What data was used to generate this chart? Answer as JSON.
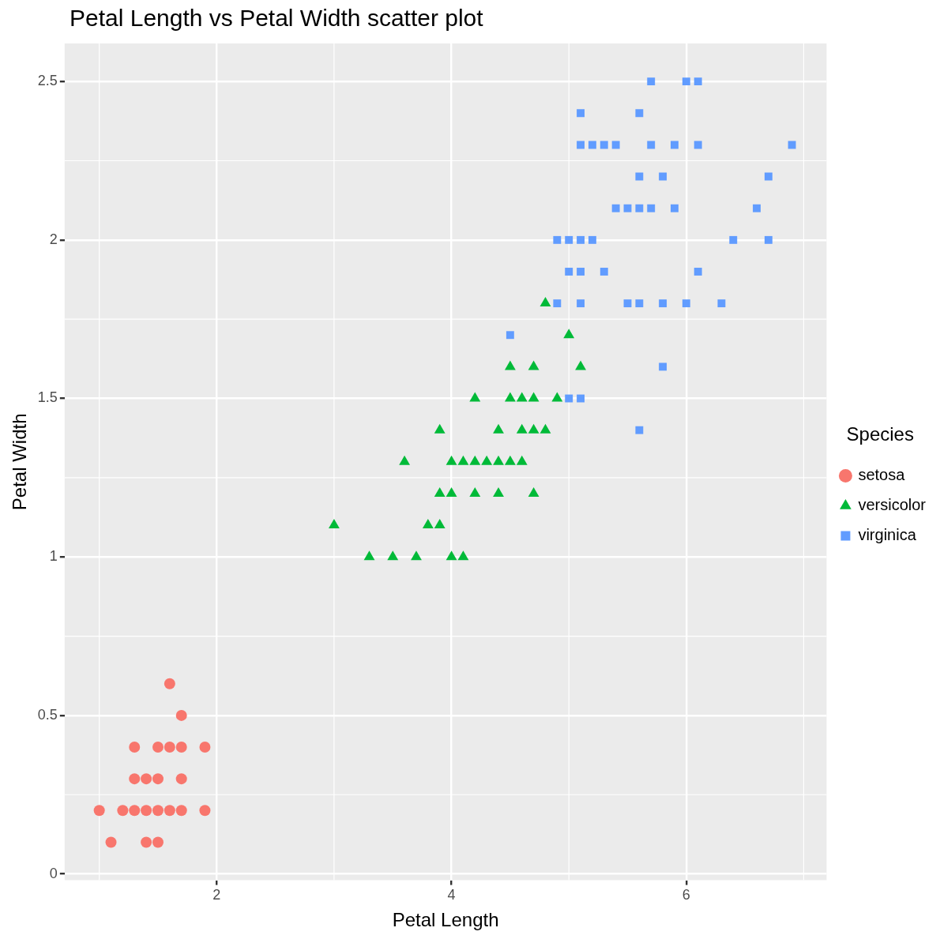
{
  "chart_data": {
    "type": "scatter",
    "title": "Petal Length vs Petal Width scatter plot",
    "xlabel": "Petal Length",
    "ylabel": "Petal Width",
    "legend_title": "Species",
    "legend": "right",
    "grid": true,
    "xlim": [
      0.705,
      7.195
    ],
    "xticks": [
      2,
      4,
      6
    ],
    "ylim": [
      -0.02,
      2.62
    ],
    "yticks": [
      0.0,
      0.5,
      1.0,
      1.5,
      2.0,
      {
        "value": 2.5,
        "label": "2.5"
      }
    ],
    "series": [
      {
        "name": "setosa",
        "color": "#f8766d",
        "marker": "circle",
        "x": [
          1.0,
          1.2,
          1.3,
          1.4,
          1.5,
          1.6,
          1.7,
          1.9,
          1.1,
          1.4,
          1.5,
          1.3,
          1.4,
          1.5,
          1.7,
          1.3,
          1.5,
          1.6,
          1.7,
          1.9,
          1.7,
          1.6
        ],
        "values": [
          0.2,
          0.2,
          0.2,
          0.2,
          0.2,
          0.2,
          0.2,
          0.2,
          0.1,
          0.1,
          0.1,
          0.3,
          0.3,
          0.3,
          0.3,
          0.4,
          0.4,
          0.4,
          0.4,
          0.4,
          0.5,
          0.6
        ]
      },
      {
        "name": "versicolor",
        "color": "#00ba38",
        "marker": "triangle",
        "x": [
          3.3,
          3.5,
          3.7,
          4.0,
          4.1,
          3.0,
          3.8,
          3.9,
          3.9,
          4.0,
          4.2,
          4.4,
          4.7,
          3.6,
          4.0,
          4.1,
          4.2,
          4.3,
          4.4,
          4.5,
          4.6,
          3.9,
          4.4,
          4.6,
          4.7,
          4.8,
          4.2,
          4.5,
          4.6,
          4.7,
          4.9,
          4.5,
          4.7,
          5.1,
          5.0,
          4.8
        ],
        "values": [
          1.0,
          1.0,
          1.0,
          1.0,
          1.0,
          1.1,
          1.1,
          1.1,
          1.2,
          1.2,
          1.2,
          1.2,
          1.2,
          1.3,
          1.3,
          1.3,
          1.3,
          1.3,
          1.3,
          1.3,
          1.3,
          1.4,
          1.4,
          1.4,
          1.4,
          1.4,
          1.5,
          1.5,
          1.5,
          1.5,
          1.5,
          1.6,
          1.6,
          1.6,
          1.7,
          1.8
        ]
      },
      {
        "name": "virginica",
        "color": "#619cff",
        "marker": "square",
        "x": [
          5.6,
          5.0,
          5.1,
          5.8,
          4.5,
          4.8,
          4.9,
          5.1,
          5.5,
          5.6,
          5.8,
          6.0,
          6.3,
          5.0,
          5.1,
          5.3,
          6.1,
          4.9,
          5.0,
          5.1,
          5.2,
          6.4,
          6.7,
          5.4,
          5.5,
          5.6,
          5.7,
          5.9,
          6.6,
          5.6,
          5.8,
          6.7,
          5.1,
          5.2,
          5.3,
          5.4,
          5.7,
          5.9,
          6.1,
          6.9,
          5.1,
          5.6,
          5.7,
          6.0,
          6.1
        ],
        "values": [
          1.4,
          1.5,
          1.5,
          1.6,
          1.7,
          null,
          1.8,
          1.8,
          1.8,
          1.8,
          1.8,
          1.8,
          1.8,
          1.9,
          1.9,
          1.9,
          1.9,
          2.0,
          2.0,
          2.0,
          2.0,
          2.0,
          2.0,
          2.1,
          2.1,
          2.1,
          2.1,
          2.1,
          2.1,
          2.2,
          2.2,
          2.2,
          2.3,
          2.3,
          2.3,
          2.3,
          2.3,
          2.3,
          2.3,
          2.3,
          2.4,
          2.4,
          2.5,
          2.5,
          2.5
        ]
      }
    ]
  }
}
